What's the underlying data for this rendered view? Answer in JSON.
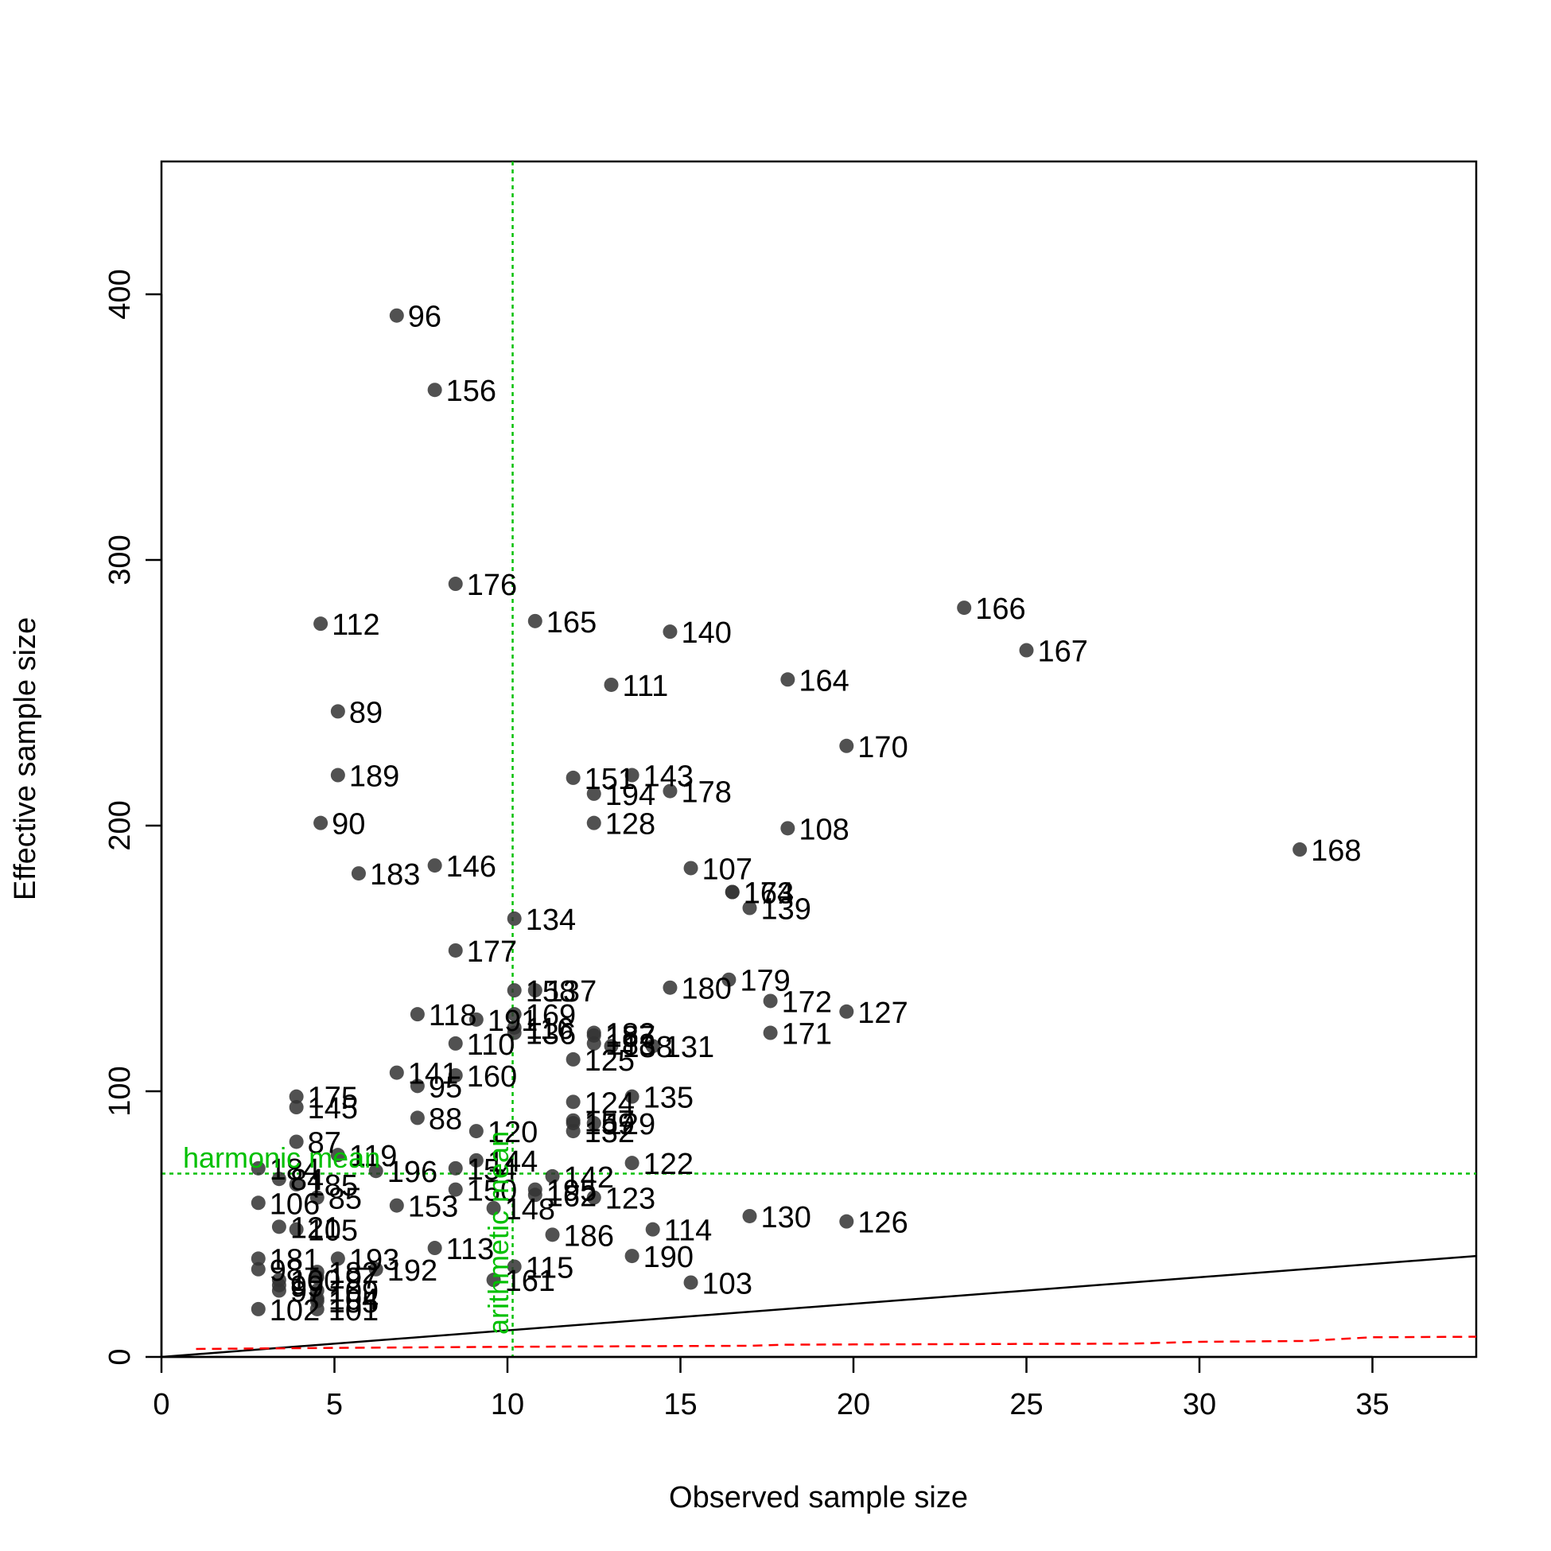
{
  "chart_data": {
    "type": "scatter",
    "xlabel": "Observed sample size",
    "ylabel": "Effective sample size",
    "xlim": [
      0,
      38
    ],
    "ylim": [
      0,
      450
    ],
    "x_ticks": [
      "0",
      "5",
      "10",
      "15",
      "20",
      "25",
      "30",
      "35"
    ],
    "x_tick_values": [
      0,
      5,
      10,
      15,
      20,
      25,
      30,
      35
    ],
    "y_ticks": [
      "0",
      "100",
      "200",
      "300",
      "400"
    ],
    "y_tick_values": [
      0,
      100,
      200,
      300,
      400
    ],
    "grid": false,
    "point_color": "#333333",
    "reference_lines": {
      "harmonic_mean": {
        "label": "harmonic mean",
        "y": 69,
        "color": "#00c000"
      },
      "arithmetic_mean": {
        "label": "arithmetic mean",
        "x": 10.15,
        "color": "#00c000"
      },
      "identity_line": {
        "color": "#000000"
      },
      "dashed_curve": {
        "color": "#ff0000",
        "x": [
          1,
          3,
          5,
          10,
          15,
          17,
          18,
          20,
          25,
          28,
          30,
          33,
          35,
          38
        ],
        "y": [
          3,
          3.2,
          3.4,
          3.8,
          4.1,
          4.2,
          4.6,
          4.7,
          4.9,
          5.0,
          5.7,
          6.0,
          7.4,
          7.6
        ]
      }
    },
    "points": [
      {
        "label": "96",
        "x": 6.8,
        "y": 392
      },
      {
        "label": "156",
        "x": 7.9,
        "y": 364
      },
      {
        "label": "176",
        "x": 8.5,
        "y": 291
      },
      {
        "label": "112",
        "x": 4.6,
        "y": 276
      },
      {
        "label": "165",
        "x": 10.8,
        "y": 277
      },
      {
        "label": "140",
        "x": 14.7,
        "y": 273
      },
      {
        "label": "166",
        "x": 23.2,
        "y": 282
      },
      {
        "label": "167",
        "x": 25.0,
        "y": 266
      },
      {
        "label": "111",
        "x": 13.0,
        "y": 253
      },
      {
        "label": "164",
        "x": 18.1,
        "y": 255
      },
      {
        "label": "89",
        "x": 5.1,
        "y": 243
      },
      {
        "label": "170",
        "x": 19.8,
        "y": 230
      },
      {
        "label": "189",
        "x": 5.1,
        "y": 219
      },
      {
        "label": "151",
        "x": 11.9,
        "y": 218
      },
      {
        "label": "143",
        "x": 13.6,
        "y": 219
      },
      {
        "label": "194",
        "x": 12.5,
        "y": 212
      },
      {
        "label": "178",
        "x": 14.7,
        "y": 213
      },
      {
        "label": "90",
        "x": 4.6,
        "y": 201
      },
      {
        "label": "128",
        "x": 12.5,
        "y": 201
      },
      {
        "label": "108",
        "x": 18.1,
        "y": 199
      },
      {
        "label": "168",
        "x": 32.9,
        "y": 191
      },
      {
        "label": "183",
        "x": 5.7,
        "y": 182
      },
      {
        "label": "146",
        "x": 7.9,
        "y": 185
      },
      {
        "label": "107",
        "x": 15.3,
        "y": 184
      },
      {
        "label": "163",
        "x": 16.5,
        "y": 175
      },
      {
        "label": "174",
        "x": 16.5,
        "y": 175
      },
      {
        "label": "139",
        "x": 17.0,
        "y": 169
      },
      {
        "label": "134",
        "x": 10.2,
        "y": 165
      },
      {
        "label": "177",
        "x": 8.5,
        "y": 153
      },
      {
        "label": "158",
        "x": 10.2,
        "y": 138
      },
      {
        "label": "137",
        "x": 10.8,
        "y": 138
      },
      {
        "label": "180",
        "x": 14.7,
        "y": 139
      },
      {
        "label": "179",
        "x": 16.4,
        "y": 142
      },
      {
        "label": "172",
        "x": 17.6,
        "y": 134
      },
      {
        "label": "127",
        "x": 19.8,
        "y": 130
      },
      {
        "label": "118",
        "x": 7.4,
        "y": 129
      },
      {
        "label": "191",
        "x": 9.1,
        "y": 127
      },
      {
        "label": "169",
        "x": 10.2,
        "y": 129
      },
      {
        "label": "116",
        "x": 10.2,
        "y": 124
      },
      {
        "label": "136",
        "x": 10.2,
        "y": 122
      },
      {
        "label": "182",
        "x": 12.5,
        "y": 122
      },
      {
        "label": "187",
        "x": 12.5,
        "y": 121
      },
      {
        "label": "188",
        "x": 12.5,
        "y": 118
      },
      {
        "label": "138",
        "x": 13.0,
        "y": 117
      },
      {
        "label": "131",
        "x": 14.2,
        "y": 117
      },
      {
        "label": "171",
        "x": 17.6,
        "y": 122
      },
      {
        "label": "110",
        "x": 8.5,
        "y": 118
      },
      {
        "label": "125",
        "x": 11.9,
        "y": 112
      },
      {
        "label": "141",
        "x": 6.8,
        "y": 107
      },
      {
        "label": "160",
        "x": 8.5,
        "y": 106
      },
      {
        "label": "95",
        "x": 7.4,
        "y": 102
      },
      {
        "label": "175",
        "x": 3.9,
        "y": 98
      },
      {
        "label": "145",
        "x": 3.9,
        "y": 94
      },
      {
        "label": "124",
        "x": 11.9,
        "y": 96
      },
      {
        "label": "135",
        "x": 13.6,
        "y": 98
      },
      {
        "label": "88",
        "x": 7.4,
        "y": 90
      },
      {
        "label": "157",
        "x": 11.9,
        "y": 89
      },
      {
        "label": "159",
        "x": 11.9,
        "y": 88
      },
      {
        "label": "129",
        "x": 12.5,
        "y": 88
      },
      {
        "label": "132",
        "x": 11.9,
        "y": 85
      },
      {
        "label": "120",
        "x": 9.1,
        "y": 85
      },
      {
        "label": "87",
        "x": 3.9,
        "y": 81
      },
      {
        "label": "122",
        "x": 13.6,
        "y": 73
      },
      {
        "label": "119",
        "x": 5.1,
        "y": 76
      },
      {
        "label": "196",
        "x": 6.2,
        "y": 70
      },
      {
        "label": "144",
        "x": 9.1,
        "y": 74
      },
      {
        "label": "154",
        "x": 8.5,
        "y": 71
      },
      {
        "label": "184",
        "x": 2.8,
        "y": 71
      },
      {
        "label": "142",
        "x": 11.3,
        "y": 68
      },
      {
        "label": "84",
        "x": 3.4,
        "y": 67
      },
      {
        "label": "185",
        "x": 3.9,
        "y": 65
      },
      {
        "label": "150",
        "x": 8.5,
        "y": 63
      },
      {
        "label": "195",
        "x": 10.8,
        "y": 63
      },
      {
        "label": "162",
        "x": 10.8,
        "y": 61
      },
      {
        "label": "85",
        "x": 4.5,
        "y": 60
      },
      {
        "label": "123",
        "x": 12.5,
        "y": 60
      },
      {
        "label": "106",
        "x": 2.8,
        "y": 58
      },
      {
        "label": "153",
        "x": 6.8,
        "y": 57
      },
      {
        "label": "148",
        "x": 9.6,
        "y": 56
      },
      {
        "label": "130",
        "x": 17.0,
        "y": 53
      },
      {
        "label": "126",
        "x": 19.8,
        "y": 51
      },
      {
        "label": "121",
        "x": 3.4,
        "y": 49
      },
      {
        "label": "105",
        "x": 3.9,
        "y": 48
      },
      {
        "label": "114",
        "x": 14.2,
        "y": 48
      },
      {
        "label": "186",
        "x": 11.3,
        "y": 46
      },
      {
        "label": "113",
        "x": 7.9,
        "y": 41
      },
      {
        "label": "190",
        "x": 13.6,
        "y": 38
      },
      {
        "label": "181",
        "x": 2.8,
        "y": 37
      },
      {
        "label": "193",
        "x": 5.1,
        "y": 37
      },
      {
        "label": "98",
        "x": 2.8,
        "y": 33
      },
      {
        "label": "192",
        "x": 6.2,
        "y": 33
      },
      {
        "label": "115",
        "x": 10.2,
        "y": 34
      },
      {
        "label": "182b",
        "x": 4.5,
        "y": 32
      },
      {
        "label": "103",
        "x": 15.3,
        "y": 28
      },
      {
        "label": "161",
        "x": 9.6,
        "y": 29
      },
      {
        "label": "100",
        "x": 3.4,
        "y": 29
      },
      {
        "label": "99",
        "x": 3.4,
        "y": 27
      },
      {
        "label": "197",
        "x": 4.5,
        "y": 30
      },
      {
        "label": "97",
        "x": 3.4,
        "y": 25
      },
      {
        "label": "109",
        "x": 4.5,
        "y": 25
      },
      {
        "label": "104",
        "x": 4.5,
        "y": 22
      },
      {
        "label": "155",
        "x": 4.5,
        "y": 21
      },
      {
        "label": "102",
        "x": 2.8,
        "y": 18
      },
      {
        "label": "101",
        "x": 4.5,
        "y": 18
      }
    ]
  }
}
